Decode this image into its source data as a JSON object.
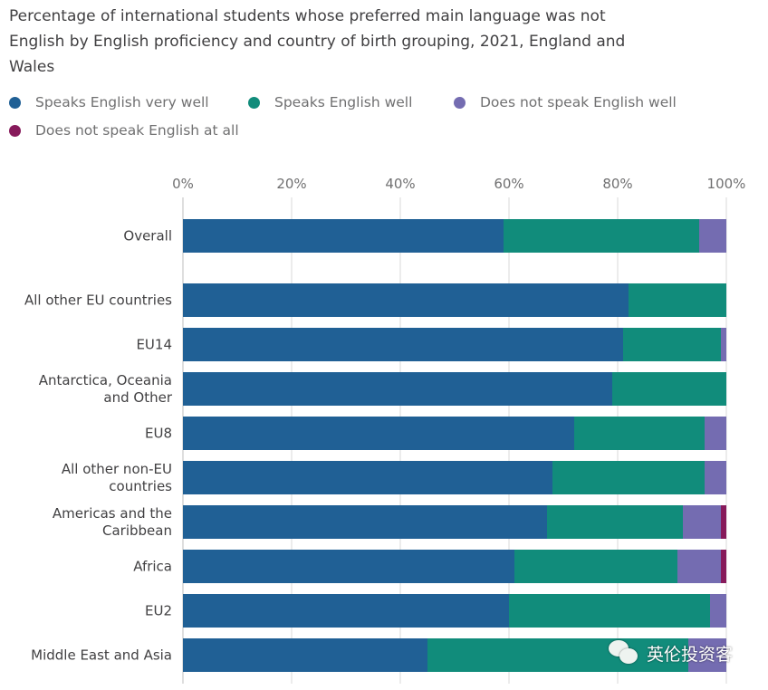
{
  "watermark": {
    "icon": "wechat-icon",
    "text": "英伦投资客"
  },
  "chart_data": {
    "type": "bar",
    "orientation": "horizontal",
    "stacked": true,
    "title": "Percentage of international students whose preferred main language was not English by English proficiency and country of birth grouping, 2021, England and Wales",
    "title_lines": [
      "Percentage of international students whose preferred main language was not",
      "English by English proficiency and country of birth grouping, 2021, England and",
      "Wales"
    ],
    "xlabel": "",
    "ylabel": "",
    "xlim": [
      0,
      100
    ],
    "x_ticks": [
      0,
      20,
      40,
      60,
      80,
      100
    ],
    "x_tick_labels": [
      "0%",
      "20%",
      "40%",
      "60%",
      "80%",
      "100%"
    ],
    "grid": true,
    "legend_position": "top",
    "categories": [
      "Overall",
      "All other EU countries",
      "EU14",
      "Antarctica, Oceania and Other",
      "EU8",
      "All other non-EU countries",
      "Americas and the Caribbean",
      "Africa",
      "EU2",
      "Middle East and Asia"
    ],
    "category_label_lines": [
      [
        "Overall"
      ],
      [
        "All other EU countries"
      ],
      [
        "EU14"
      ],
      [
        "Antarctica, Oceania",
        "and Other"
      ],
      [
        "EU8"
      ],
      [
        "All other non-EU",
        "countries"
      ],
      [
        "Americas and the",
        "Caribbean"
      ],
      [
        "Africa"
      ],
      [
        "EU2"
      ],
      [
        "Middle East and Asia"
      ]
    ],
    "series": [
      {
        "name": "Speaks English very well",
        "color": "#206095",
        "values": [
          59,
          82,
          81,
          79,
          72,
          68,
          67,
          61,
          60,
          45
        ]
      },
      {
        "name": "Speaks English well",
        "color": "#118c7b",
        "values": [
          36,
          18,
          18,
          21,
          24,
          28,
          25,
          30,
          37,
          48
        ]
      },
      {
        "name": "Does not speak English well",
        "color": "#746cb1",
        "values": [
          5,
          0,
          1,
          0,
          4,
          4,
          7,
          8,
          3,
          7
        ]
      },
      {
        "name": "Does not speak English at all",
        "color": "#871a5b",
        "values": [
          0,
          0,
          0,
          0,
          0,
          0,
          1,
          1,
          0,
          0
        ]
      }
    ]
  }
}
